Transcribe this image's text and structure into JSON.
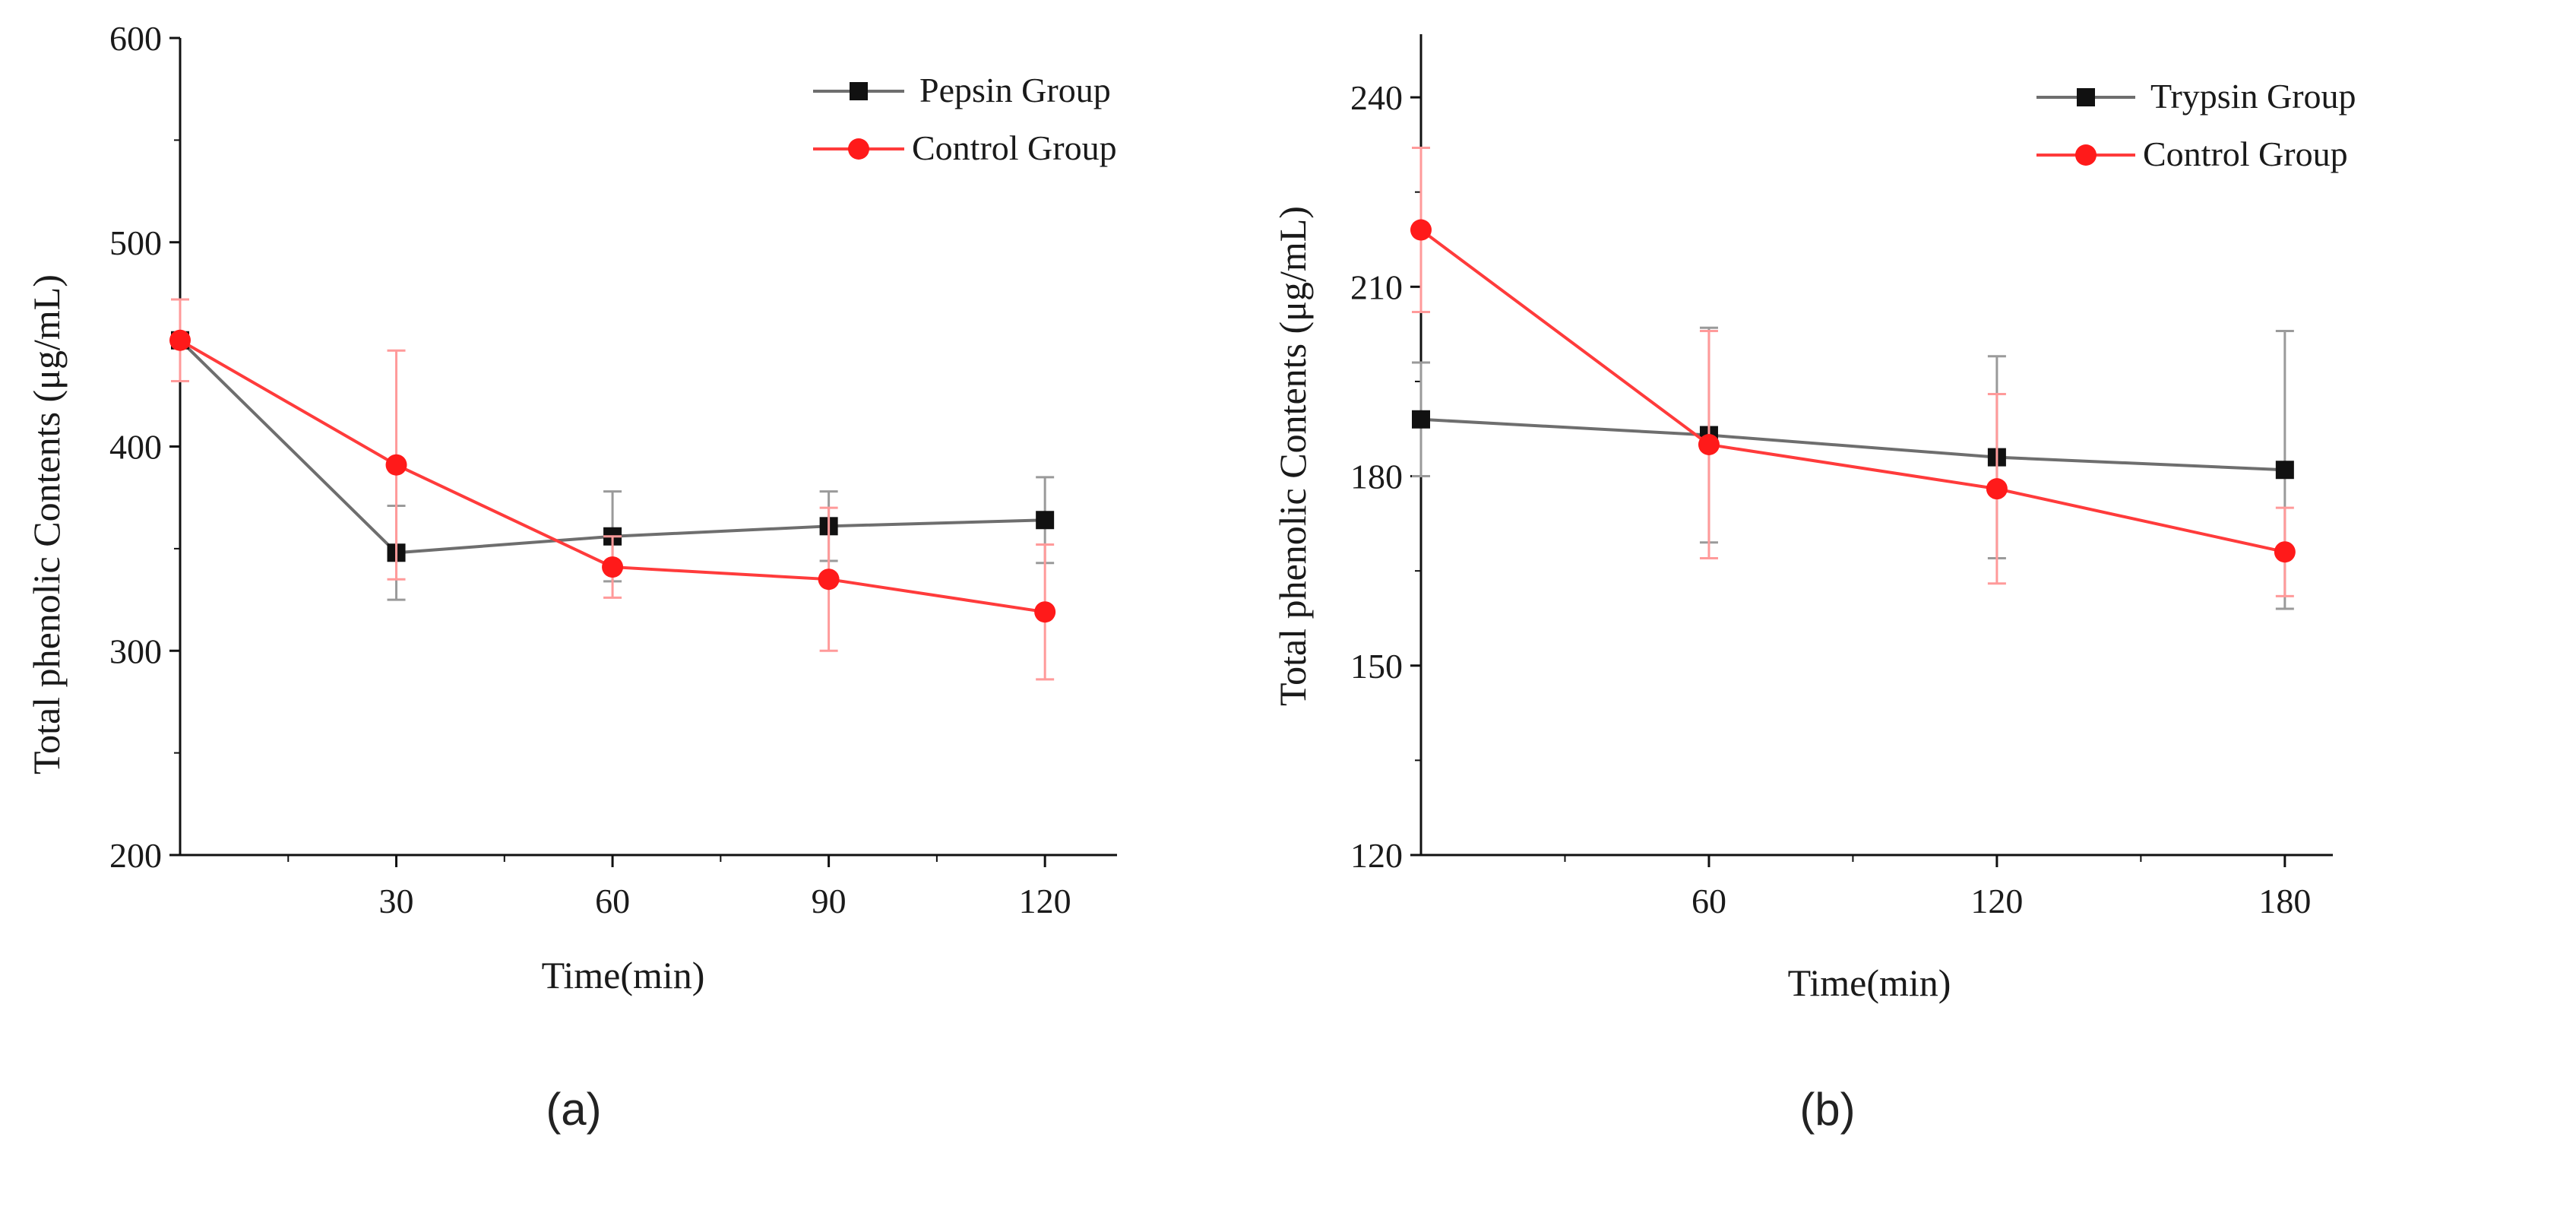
{
  "colors": {
    "series_a": "#6e6e6e",
    "series_b": "#ff3b3b",
    "marker_a": "#111111",
    "marker_b": "#ff1a1a",
    "err_a": "#9a9a9a",
    "err_b": "#ff9a9a"
  },
  "chart_data": [
    {
      "type": "line",
      "panel_label": "(a)",
      "xlabel": "Time(min)",
      "ylabel": "Total phenolic Contents (μg/mL)",
      "x": [
        0,
        30,
        60,
        90,
        120
      ],
      "xlim": [
        0,
        130
      ],
      "xticks": [
        30,
        60,
        90,
        120
      ],
      "xtick_labels": [
        "30",
        "60",
        "90",
        "120"
      ],
      "ylim": [
        200,
        600
      ],
      "yticks": [
        200,
        300,
        400,
        500,
        600
      ],
      "ytick_labels": [
        "200",
        "300",
        "400",
        "500",
        "600"
      ],
      "legend_position": "top-right",
      "series": [
        {
          "name": "Pepsin Group",
          "marker": "square",
          "values": [
            452,
            348,
            356,
            361,
            364
          ],
          "errors": [
            0,
            23,
            22,
            17,
            21
          ]
        },
        {
          "name": "Control Group",
          "marker": "circle",
          "values": [
            452,
            391,
            341,
            335,
            319
          ],
          "errors": [
            20,
            56,
            15,
            35,
            33
          ]
        }
      ]
    },
    {
      "type": "line",
      "panel_label": "(b)",
      "xlabel": "Time(min)",
      "ylabel": "Total phenolic Contents (μg/mL)",
      "x": [
        0,
        60,
        120,
        180
      ],
      "xlim": [
        0,
        190
      ],
      "xticks": [
        60,
        120,
        180
      ],
      "xtick_labels": [
        "60",
        "120",
        "180"
      ],
      "ylim": [
        120,
        250
      ],
      "yticks": [
        120,
        150,
        180,
        210,
        240
      ],
      "ytick_labels": [
        "120",
        "150",
        "180",
        "210",
        "240"
      ],
      "legend_position": "top-right",
      "series": [
        {
          "name": "Trypsin Group",
          "marker": "square",
          "values": [
            189,
            186.5,
            183,
            181
          ],
          "errors": [
            9,
            17,
            16,
            22
          ]
        },
        {
          "name": "Control Group",
          "marker": "circle",
          "values": [
            219,
            185,
            178,
            168
          ],
          "errors": [
            13,
            18,
            15,
            7
          ]
        }
      ]
    }
  ]
}
